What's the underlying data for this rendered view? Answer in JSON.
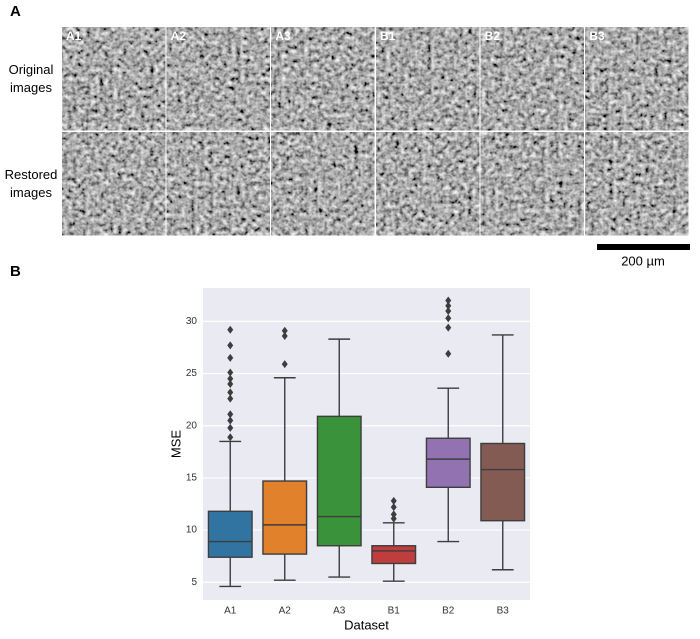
{
  "panel_labels": [
    "A",
    "B"
  ],
  "image_grid": {
    "columns": [
      "A1",
      "A2",
      "A3",
      "B1",
      "B2",
      "B3"
    ],
    "rows": [
      [
        "Original",
        "images"
      ],
      [
        "Restored",
        "images"
      ]
    ],
    "scale_bar": "200 µm"
  },
  "chart_data": {
    "type": "box",
    "x_label": "Dataset",
    "y_label": "MSE",
    "categories": [
      "A1",
      "A2",
      "A3",
      "B1",
      "B2",
      "B3"
    ],
    "colors": [
      "#3274a1",
      "#e1812c",
      "#3a923a",
      "#c03d3e",
      "#9372b2",
      "#845b53"
    ],
    "whislo": [
      4.6,
      5.2,
      5.5,
      5.1,
      8.9,
      6.2
    ],
    "q1": [
      7.4,
      7.7,
      8.5,
      6.8,
      14.1,
      10.9
    ],
    "median": [
      8.9,
      10.5,
      11.3,
      8.0,
      16.8,
      15.8
    ],
    "q3": [
      11.8,
      14.7,
      20.9,
      8.5,
      18.8,
      18.3
    ],
    "whishi": [
      18.5,
      24.6,
      28.3,
      10.7,
      23.6,
      28.7
    ],
    "fliers": [
      [
        29.2,
        27.7,
        26.5,
        25.1,
        24.5,
        24.0,
        23.2,
        22.6,
        21.1,
        20.5,
        19.8,
        18.9
      ],
      [
        29.1,
        28.6,
        25.9
      ],
      [],
      [
        12.8,
        12.2,
        11.5,
        11.1
      ],
      [
        32.0,
        31.5,
        31.0,
        30.3,
        29.4,
        26.9
      ],
      []
    ],
    "ylim": [
      3.3,
      33.2
    ],
    "yticks": [
      5,
      10,
      15,
      20,
      25,
      30
    ],
    "grid": true,
    "background": "#eaeaf2"
  }
}
